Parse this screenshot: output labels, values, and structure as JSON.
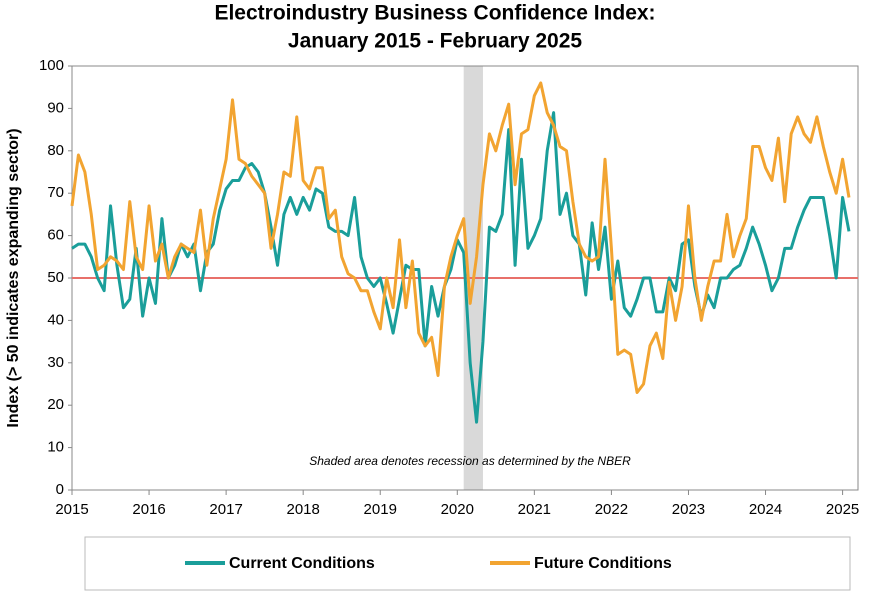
{
  "chart_data": {
    "type": "line",
    "title": "Electroindustry Business Confidence Index:",
    "subtitle": "January 2015 - February 2025",
    "ylabel": "Index (> 50 indicates expanding sector)",
    "annotation": "Shaded area denotes recession as determined by the NBER",
    "recession": [
      2020.083,
      2020.333
    ],
    "reference_line": 50,
    "reference_color": "#e8706a",
    "xlim": [
      2015,
      2025.2
    ],
    "xticks": [
      2015,
      2016,
      2017,
      2018,
      2019,
      2020,
      2021,
      2022,
      2023,
      2024,
      2025
    ],
    "ylim": [
      0,
      100
    ],
    "yticks": [
      0,
      10,
      20,
      30,
      40,
      50,
      60,
      70,
      80,
      90,
      100
    ],
    "x": [
      2015,
      2015.083,
      2015.167,
      2015.25,
      2015.333,
      2015.417,
      2015.5,
      2015.583,
      2015.667,
      2015.75,
      2015.833,
      2015.917,
      2016,
      2016.083,
      2016.167,
      2016.25,
      2016.333,
      2016.417,
      2016.5,
      2016.583,
      2016.667,
      2016.75,
      2016.833,
      2016.917,
      2017,
      2017.083,
      2017.167,
      2017.25,
      2017.333,
      2017.417,
      2017.5,
      2017.583,
      2017.667,
      2017.75,
      2017.833,
      2017.917,
      2018,
      2018.083,
      2018.167,
      2018.25,
      2018.333,
      2018.417,
      2018.5,
      2018.583,
      2018.667,
      2018.75,
      2018.833,
      2018.917,
      2019,
      2019.083,
      2019.167,
      2019.25,
      2019.333,
      2019.417,
      2019.5,
      2019.583,
      2019.667,
      2019.75,
      2019.833,
      2019.917,
      2020,
      2020.083,
      2020.167,
      2020.25,
      2020.333,
      2020.417,
      2020.5,
      2020.583,
      2020.667,
      2020.75,
      2020.833,
      2020.917,
      2021,
      2021.083,
      2021.167,
      2021.25,
      2021.333,
      2021.417,
      2021.5,
      2021.583,
      2021.667,
      2021.75,
      2021.833,
      2021.917,
      2022,
      2022.083,
      2022.167,
      2022.25,
      2022.333,
      2022.417,
      2022.5,
      2022.583,
      2022.667,
      2022.75,
      2022.833,
      2022.917,
      2023,
      2023.083,
      2023.167,
      2023.25,
      2023.333,
      2023.417,
      2023.5,
      2023.583,
      2023.667,
      2023.75,
      2023.833,
      2023.917,
      2024,
      2024.083,
      2024.167,
      2024.25,
      2024.333,
      2024.417,
      2024.5,
      2024.583,
      2024.667,
      2024.75,
      2024.833,
      2024.917,
      2025,
      2025.083
    ],
    "series": [
      {
        "name": "Current Conditions",
        "color": "#1a9e9a",
        "values": [
          57,
          58,
          58,
          55,
          50,
          47,
          67,
          53,
          43,
          45,
          57,
          41,
          50,
          44,
          64,
          50,
          53,
          58,
          55,
          58,
          47,
          56,
          58,
          66,
          71,
          73,
          73,
          76,
          77,
          75,
          70,
          62,
          53,
          65,
          69,
          65,
          69,
          66,
          71,
          70,
          62,
          61,
          61,
          60,
          69,
          55,
          50,
          48,
          50,
          44,
          37,
          45,
          53,
          52,
          52,
          34,
          48,
          41,
          48,
          52,
          59,
          56,
          30,
          16,
          35,
          62,
          61,
          65,
          85,
          53,
          78,
          57,
          60,
          64,
          80,
          89,
          65,
          70,
          60,
          58,
          46,
          63,
          52,
          62,
          45,
          54,
          43,
          41,
          45,
          50,
          50,
          42,
          42,
          50,
          47,
          58,
          59,
          48,
          41,
          46,
          43,
          50,
          50,
          52,
          53,
          57,
          62,
          58,
          53,
          47,
          50,
          57,
          57,
          62,
          66,
          69,
          69,
          69,
          60,
          50,
          69,
          61
        ]
      },
      {
        "name": "Future Conditions",
        "color": "#f2a431",
        "values": [
          67,
          79,
          75,
          65,
          52,
          53,
          55,
          54,
          52,
          68,
          55,
          52,
          67,
          54,
          58,
          50,
          55,
          58,
          57,
          56,
          66,
          53,
          64,
          71,
          78,
          92,
          78,
          77,
          74,
          72,
          70,
          57,
          65,
          75,
          74,
          88,
          73,
          71,
          76,
          76,
          64,
          66,
          55,
          51,
          50,
          47,
          47,
          42,
          38,
          50,
          43,
          59,
          43,
          54,
          37,
          34,
          36,
          27,
          48,
          55,
          60,
          64,
          44,
          55,
          72,
          84,
          80,
          86,
          91,
          72,
          84,
          85,
          93,
          96,
          89,
          86,
          81,
          80,
          68,
          58,
          55,
          54,
          55,
          78,
          57,
          32,
          33,
          32,
          23,
          25,
          34,
          37,
          31,
          49,
          40,
          48,
          67,
          50,
          40,
          48,
          54,
          54,
          65,
          55,
          60,
          64,
          81,
          81,
          76,
          73,
          83,
          68,
          84,
          88,
          84,
          82,
          88,
          81,
          75,
          70,
          78,
          69
        ]
      }
    ]
  }
}
